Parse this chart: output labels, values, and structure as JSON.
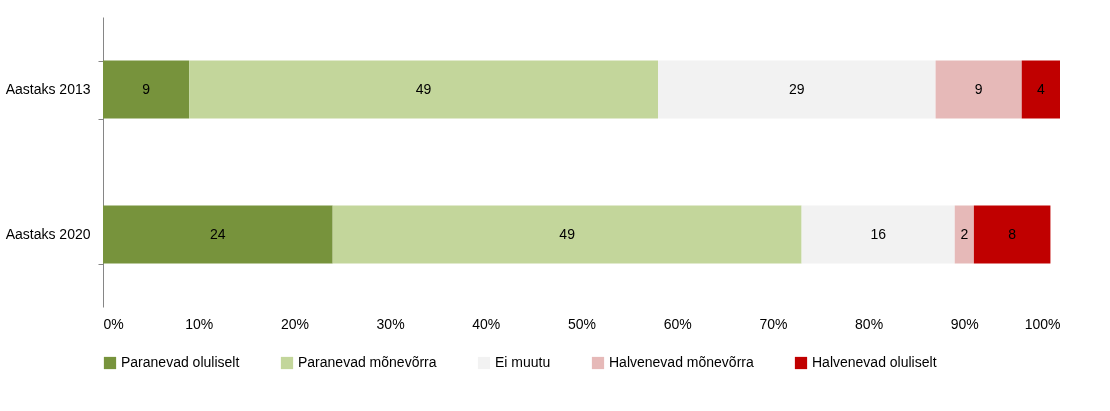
{
  "chart_data": {
    "type": "bar",
    "orientation": "horizontal",
    "stacked": true,
    "data_labels": true,
    "legend": "bottom",
    "grid": false,
    "categories": [
      "Aastaks 2013",
      "Aastaks 2020"
    ],
    "xlim": [
      0,
      100
    ],
    "xticks": [
      {
        "value": 0,
        "label": "0%"
      },
      {
        "value": 10,
        "label": "10%"
      },
      {
        "value": 20,
        "label": "20%"
      },
      {
        "value": 30,
        "label": "30%"
      },
      {
        "value": 40,
        "label": "40%"
      },
      {
        "value": 50,
        "label": "50%"
      },
      {
        "value": 60,
        "label": "60%"
      },
      {
        "value": 70,
        "label": "70%"
      },
      {
        "value": 80,
        "label": "80%"
      },
      {
        "value": 90,
        "label": "90%"
      },
      {
        "value": 100,
        "label": "100%"
      }
    ],
    "series": [
      {
        "name": "Paranevad oluliselt",
        "color": "#77933c",
        "values": [
          9,
          24
        ]
      },
      {
        "name": "Paranevad mõnevõrra",
        "color": "#c3d69b",
        "values": [
          49,
          49
        ]
      },
      {
        "name": "Ei muutu",
        "color": "#f2f2f2",
        "values": [
          29,
          16
        ]
      },
      {
        "name": "Halvenevad mõnevõrra",
        "color": "#e6b9b8",
        "values": [
          9,
          2
        ]
      },
      {
        "name": "Halvenevad oluliselt",
        "color": "#c00000",
        "values": [
          4,
          8
        ]
      }
    ]
  }
}
